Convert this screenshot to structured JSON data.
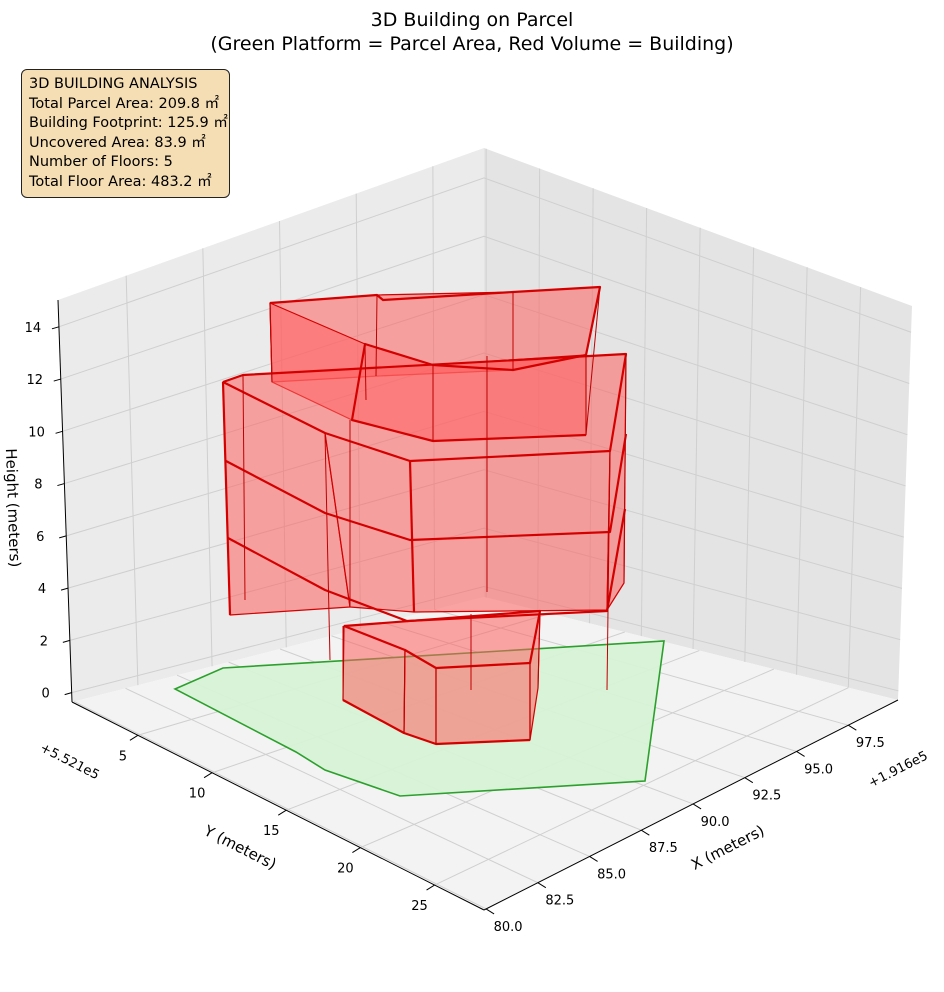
{
  "chart_data": {
    "type": "3d-surface",
    "title": [
      "3D Building on Parcel",
      "(Green Platform = Parcel Area, Red Volume = Building)"
    ],
    "xlabel": "X (meters)",
    "ylabel": "Y (meters)",
    "zlabel": "Height (meters)",
    "x_offset_label": "+1.916e5",
    "y_offset_label": "+5.521e5",
    "x_ticks": [
      "80.0",
      "82.5",
      "85.0",
      "87.5",
      "90.0",
      "92.5",
      "95.0",
      "97.5"
    ],
    "y_ticks": [
      "5",
      "10",
      "15",
      "20",
      "25"
    ],
    "z_ticks": [
      "0",
      "2",
      "4",
      "6",
      "8",
      "10",
      "12",
      "14"
    ],
    "grid": true,
    "colors": {
      "parcel_fill": "#d6f2d6",
      "parcel_edge": "#2ca02c",
      "building_fill": "#ff6060",
      "building_edge": "#d40000",
      "pane": "#f2f2f2",
      "info_box_bg": "#f5deb3"
    },
    "annotation_box": {
      "heading": "3D BUILDING ANALYSIS",
      "lines": [
        "Total Parcel Area: 209.8 ㎡",
        "Building Footprint: 125.9 ㎡",
        "Uncovered Area: 83.9 ㎡",
        "Number of Floors: 5",
        "Total Floor Area: 483.2 ㎡"
      ]
    },
    "metrics": {
      "total_parcel_area_m2": 209.8,
      "building_footprint_m2": 125.9,
      "uncovered_area_m2": 83.9,
      "number_of_floors": 5,
      "total_floor_area_m2": 483.2
    }
  }
}
